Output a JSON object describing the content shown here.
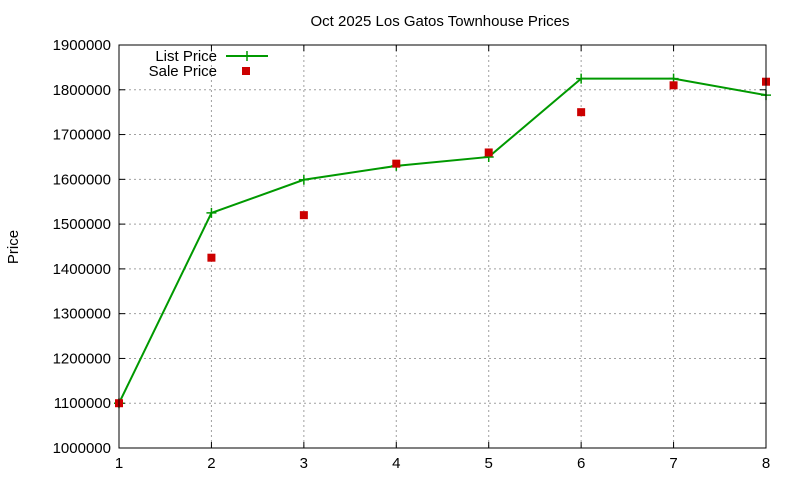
{
  "chart_data": {
    "type": "line",
    "title": "Oct 2025 Los Gatos Townhouse Prices",
    "xlabel": "",
    "ylabel": "Price",
    "x": [
      1,
      2,
      3,
      4,
      5,
      6,
      7,
      8
    ],
    "xlim": [
      1,
      8
    ],
    "ylim": [
      1000000,
      1900000
    ],
    "xticks": [
      "1",
      "2",
      "3",
      "4",
      "5",
      "6",
      "7",
      "8"
    ],
    "yticks": [
      "1000000",
      "1100000",
      "1200000",
      "1300000",
      "1400000",
      "1500000",
      "1600000",
      "1700000",
      "1800000",
      "1900000"
    ],
    "grid": true,
    "legend": "top-left",
    "series": [
      {
        "name": "List Price",
        "style": "lines+points",
        "color": "#009900",
        "values": [
          1100000,
          1525000,
          1599000,
          1630000,
          1650000,
          1825000,
          1825000,
          1788000
        ]
      },
      {
        "name": "Sale Price",
        "style": "points",
        "color": "#cc0000",
        "values": [
          1100000,
          1425000,
          1520000,
          1635000,
          1660000,
          1750000,
          1810000,
          1818000
        ]
      }
    ]
  }
}
